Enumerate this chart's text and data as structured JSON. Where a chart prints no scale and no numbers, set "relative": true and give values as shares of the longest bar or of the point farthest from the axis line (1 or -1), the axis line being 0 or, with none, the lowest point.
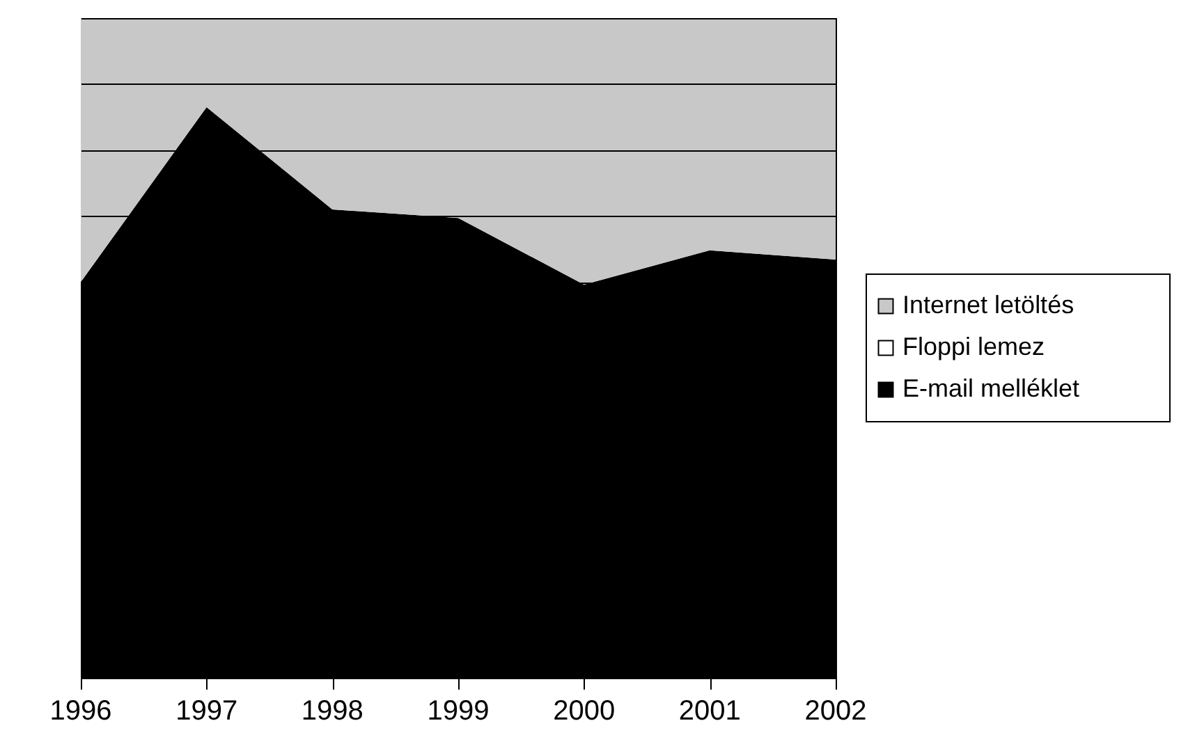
{
  "chart_data": {
    "type": "area",
    "stacked": true,
    "relative": true,
    "grid": "y",
    "legend": "right",
    "categories": [
      "1996",
      "1997",
      "1998",
      "1999",
      "2000",
      "2001",
      "2002"
    ],
    "series": [
      {
        "name": "E-mail melléklet",
        "color": "#000000",
        "values": [
          0.6,
          0.865,
          0.71,
          0.697,
          0.596,
          0.648,
          0.634
        ]
      },
      {
        "name": "Floppi lemez",
        "color": "#ffffff",
        "values": [
          null,
          null,
          null,
          null,
          null,
          null,
          null
        ]
      },
      {
        "name": "Internet letöltés",
        "color": "#c8c8c8",
        "values": [
          0.4,
          0.135,
          0.29,
          0.303,
          0.404,
          0.352,
          0.366
        ]
      }
    ]
  }
}
